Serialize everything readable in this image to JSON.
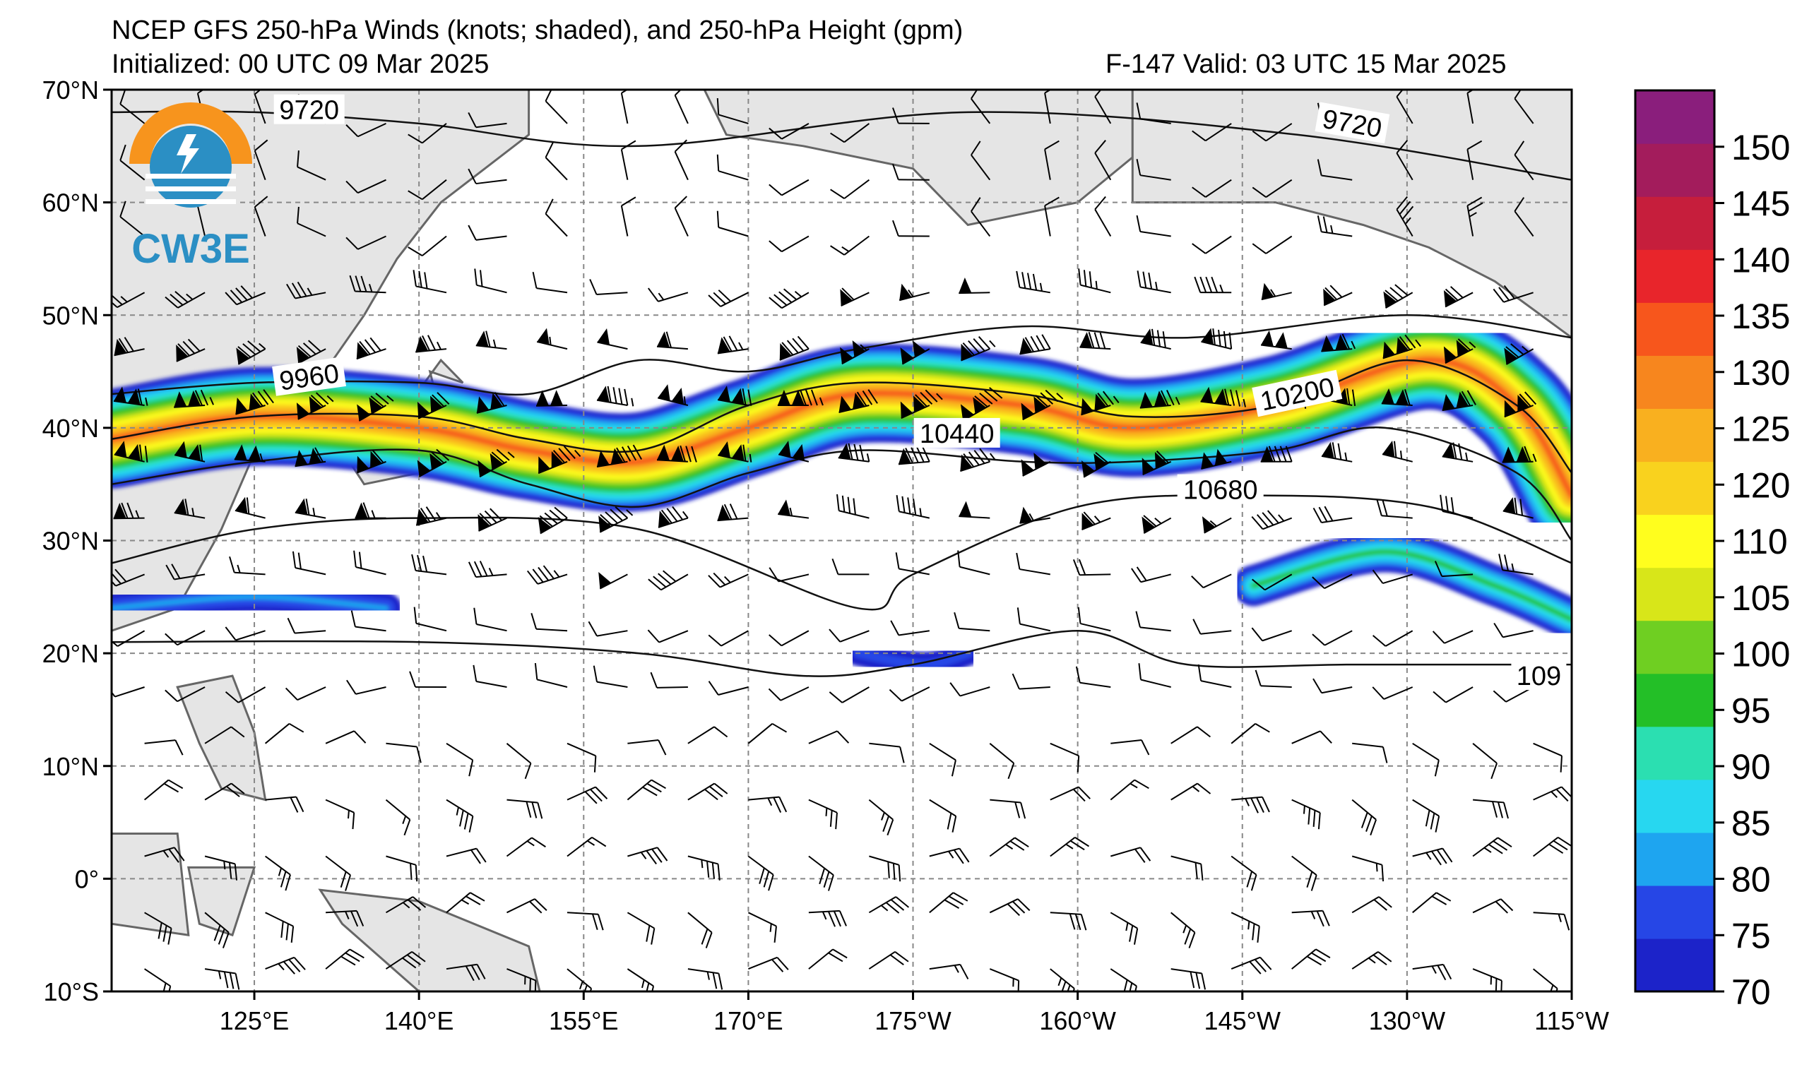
{
  "title": {
    "line1": "NCEP GFS 250-hPa Winds (knots; shaded), and 250-hPa Height (gpm)",
    "init": "Initialized: 00 UTC 09 Mar 2025",
    "valid": "F-147  Valid: 03 UTC 15 Mar 2025"
  },
  "logo": {
    "text": "CW3E",
    "colors": {
      "orange": "#f7941d",
      "blue": "#2b8fc4",
      "teal": "#2b8fc4"
    }
  },
  "map": {
    "lon_range": [
      112,
      245
    ],
    "lat_range": [
      -10,
      70
    ],
    "lat_ticks": [
      {
        "value": 70,
        "label": "70°N"
      },
      {
        "value": 60,
        "label": "60°N"
      },
      {
        "value": 50,
        "label": "50°N"
      },
      {
        "value": 40,
        "label": "40°N"
      },
      {
        "value": 30,
        "label": "30°N"
      },
      {
        "value": 20,
        "label": "20°N"
      },
      {
        "value": 10,
        "label": "10°N"
      },
      {
        "value": 0,
        "label": "0°"
      },
      {
        "value": -10,
        "label": "10°S"
      }
    ],
    "lon_ticks": [
      {
        "value": 125,
        "label": "125°E"
      },
      {
        "value": 140,
        "label": "140°E"
      },
      {
        "value": 155,
        "label": "155°E"
      },
      {
        "value": 170,
        "label": "170°E"
      },
      {
        "value": 185,
        "label": "175°W"
      },
      {
        "value": 200,
        "label": "160°W"
      },
      {
        "value": 215,
        "label": "145°W"
      },
      {
        "value": 230,
        "label": "130°W"
      },
      {
        "value": 245,
        "label": "115°W"
      }
    ],
    "grid": true
  },
  "colorbar": {
    "levels": [
      70,
      75,
      80,
      85,
      90,
      95,
      100,
      105,
      110,
      115,
      120,
      125,
      130,
      135,
      140,
      145,
      150,
      155
    ],
    "labels": [
      "70",
      "75",
      "80",
      "85",
      "90",
      "95",
      "100",
      "105",
      "110",
      "120",
      "125",
      "130",
      "135",
      "140",
      "145",
      "150"
    ],
    "colors": [
      "#1c23c9",
      "#2646e6",
      "#1ea5f0",
      "#27d7f0",
      "#2bdfb1",
      "#23bf27",
      "#6fcf22",
      "#d8e619",
      "#fffe1e",
      "#f9d21e",
      "#f9b01f",
      "#f7861e",
      "#f7561c",
      "#e8252b",
      "#c61e3c",
      "#a31c5c",
      "#8a1e7c"
    ]
  },
  "contours": [
    {
      "label": "9720",
      "points": [
        [
          112,
          68
        ],
        [
          125,
          68
        ],
        [
          140,
          67
        ],
        [
          160,
          65
        ],
        [
          190,
          68
        ],
        [
          220,
          66
        ],
        [
          245,
          62
        ]
      ]
    },
    {
      "label": "9960",
      "points": [
        [
          112,
          43
        ],
        [
          125,
          44
        ],
        [
          140,
          44
        ],
        [
          150,
          43
        ],
        [
          160,
          46
        ],
        [
          170,
          45
        ],
        [
          180,
          47
        ],
        [
          195,
          49
        ],
        [
          210,
          48
        ],
        [
          230,
          50
        ],
        [
          245,
          48
        ]
      ]
    },
    {
      "label": "10200",
      "points": [
        [
          112,
          39
        ],
        [
          125,
          41
        ],
        [
          140,
          41
        ],
        [
          150,
          39
        ],
        [
          160,
          38
        ],
        [
          170,
          42
        ],
        [
          180,
          44
        ],
        [
          195,
          43
        ],
        [
          205,
          41
        ],
        [
          218,
          42
        ],
        [
          230,
          46
        ],
        [
          240,
          42
        ],
        [
          245,
          36
        ]
      ]
    },
    {
      "label": "10440",
      "points": [
        [
          112,
          35
        ],
        [
          125,
          37
        ],
        [
          140,
          38
        ],
        [
          150,
          35
        ],
        [
          160,
          33
        ],
        [
          170,
          36
        ],
        [
          180,
          38
        ],
        [
          195,
          37
        ],
        [
          205,
          37
        ],
        [
          218,
          38
        ],
        [
          228,
          40
        ],
        [
          240,
          36
        ],
        [
          245,
          30
        ]
      ]
    },
    {
      "label": "10680",
      "points": [
        [
          112,
          28
        ],
        [
          125,
          31
        ],
        [
          140,
          32
        ],
        [
          160,
          31
        ],
        [
          180,
          24
        ],
        [
          185,
          27
        ],
        [
          200,
          33
        ],
        [
          215,
          34
        ],
        [
          232,
          33
        ],
        [
          245,
          28
        ]
      ]
    },
    {
      "label": "109",
      "points": [
        [
          112,
          21
        ],
        [
          140,
          21
        ],
        [
          160,
          20
        ],
        [
          175,
          18
        ],
        [
          185,
          19
        ],
        [
          200,
          22
        ],
        [
          210,
          19
        ],
        [
          225,
          19
        ],
        [
          245,
          19
        ]
      ]
    }
  ],
  "jet_segments": [
    {
      "points": [
        [
          112,
          39
        ],
        [
          125,
          41
        ],
        [
          140,
          40
        ],
        [
          150,
          38
        ],
        [
          160,
          37
        ],
        [
          170,
          40
        ],
        [
          180,
          43
        ],
        [
          195,
          42
        ],
        [
          205,
          40
        ],
        [
          218,
          42
        ],
        [
          232,
          46
        ],
        [
          240,
          42
        ],
        [
          245,
          34
        ]
      ],
      "peak": 130
    },
    {
      "points": [
        [
          112,
          24
        ],
        [
          125,
          25
        ],
        [
          137,
          24
        ]
      ],
      "peak": 82
    },
    {
      "points": [
        [
          180,
          20
        ],
        [
          186,
          19
        ],
        [
          190,
          20
        ]
      ],
      "peak": 78
    },
    {
      "points": [
        [
          216,
          26
        ],
        [
          228,
          29
        ],
        [
          238,
          26
        ],
        [
          245,
          23
        ]
      ],
      "peak": 95
    }
  ]
}
